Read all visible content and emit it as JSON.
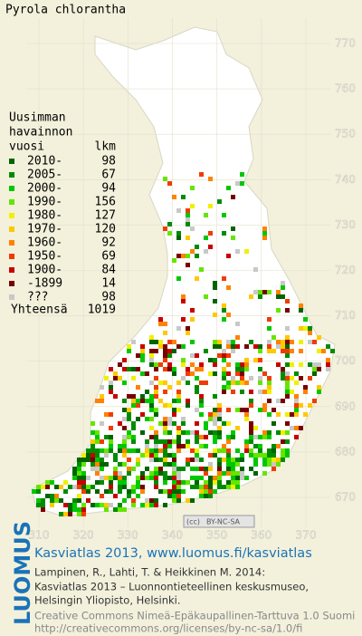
{
  "title": "Pyrola chlorantha",
  "legend": {
    "heading": [
      "Uusimman",
      "havainnon",
      "vuosi"
    ],
    "count_heading": "lkm",
    "entries": [
      {
        "label": "2010-",
        "count": 98,
        "color": "#006400"
      },
      {
        "label": "2005-",
        "count": 67,
        "color": "#008c00"
      },
      {
        "label": "2000-",
        "count": 94,
        "color": "#00c800"
      },
      {
        "label": "1990-",
        "count": 156,
        "color": "#64e600"
      },
      {
        "label": "1980-",
        "count": 127,
        "color": "#f0f000"
      },
      {
        "label": "1970-",
        "count": 120,
        "color": "#ffc800"
      },
      {
        "label": "1960-",
        "count": 92,
        "color": "#ff8200"
      },
      {
        "label": "1950-",
        "count": 69,
        "color": "#f03c00"
      },
      {
        "label": "1900-",
        "count": 84,
        "color": "#c80000"
      },
      {
        "label": "-1899",
        "count": 14,
        "color": "#780000"
      },
      {
        "label": "???",
        "count": 98,
        "color": "#c8c8c8"
      }
    ],
    "total_label": "Yhteensä",
    "total": 1019
  },
  "grid": {
    "x_ticks": [
      310,
      320,
      330,
      340,
      350,
      360,
      370
    ],
    "y_ticks": [
      670,
      680,
      690,
      700,
      710,
      720,
      730,
      740,
      750,
      760,
      770
    ]
  },
  "badge": {
    "symbol": "(cc)",
    "text": "BY-NC-SA"
  },
  "footer": {
    "brand": "LUOMUS",
    "heading": "Kasviatlas 2013, www.luomus.fi/kasviatlas",
    "citation": [
      "Lampinen, R., Lahti, T. & Heikkinen M. 2014:",
      "Kasviatlas 2013 – Luonnontieteellinen keskusmuseo,",
      "Helsingin Yliopisto, Helsinki."
    ],
    "license": [
      "Creative Commons Nimeä-Epäkaupallinen-Tarttuva 1.0 Suomi",
      "http://creativecommons.org/licenses/by-nc-sa/1.0/fi"
    ]
  }
}
